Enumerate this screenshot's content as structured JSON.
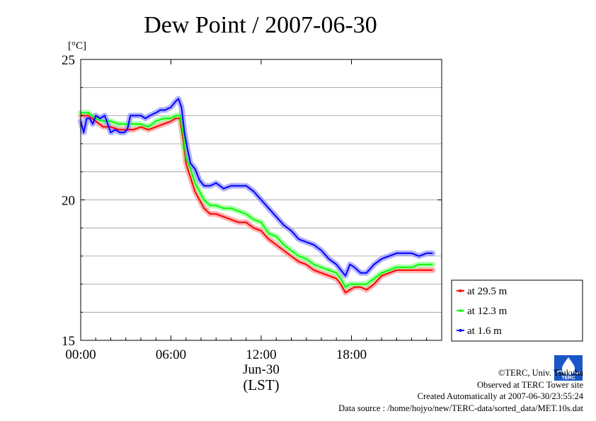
{
  "chart_data": {
    "type": "line",
    "title": "Dew Point / 2007-06-30",
    "ylabel": "[°C]",
    "xlabel_date": "Jun-30",
    "xlabel_tz": "(LST)",
    "ylim": [
      15,
      25
    ],
    "xlim": [
      0,
      24
    ],
    "y_ticks": [
      15,
      20,
      25
    ],
    "y_minor_ticks": [
      16,
      17,
      18,
      19,
      21,
      22,
      23,
      24
    ],
    "x_ticks": [
      {
        "value": 0,
        "label": "00:00"
      },
      {
        "value": 6,
        "label": "06:00"
      },
      {
        "value": 12,
        "label": "12:00"
      },
      {
        "value": 18,
        "label": "18:00"
      }
    ],
    "grid": true,
    "legend_placement": "right",
    "series": [
      {
        "name": "at 29.5 m",
        "color": "#ff0000",
        "band_color": "#ff9090",
        "x": [
          0,
          0.5,
          1,
          1.5,
          2,
          2.5,
          3,
          3.5,
          4,
          4.5,
          5,
          5.5,
          6,
          6.3,
          6.6,
          6.8,
          7,
          7.3,
          7.6,
          7.9,
          8.2,
          8.6,
          9,
          9.5,
          10,
          10.5,
          11,
          11.5,
          12,
          12.5,
          13,
          13.5,
          14,
          14.5,
          15,
          15.5,
          16,
          16.5,
          17,
          17.3,
          17.6,
          17.9,
          18.2,
          18.6,
          19,
          19.5,
          20,
          20.5,
          21,
          21.5,
          22,
          22.5,
          23,
          23.4
        ],
        "y": [
          23.0,
          23.0,
          22.8,
          22.6,
          22.6,
          22.5,
          22.5,
          22.5,
          22.6,
          22.5,
          22.6,
          22.7,
          22.8,
          22.9,
          22.9,
          22.2,
          21.3,
          20.8,
          20.3,
          20.0,
          19.7,
          19.5,
          19.5,
          19.4,
          19.3,
          19.2,
          19.2,
          19.0,
          18.9,
          18.6,
          18.4,
          18.2,
          18.0,
          17.8,
          17.7,
          17.5,
          17.4,
          17.3,
          17.2,
          17.0,
          16.7,
          16.8,
          16.9,
          16.9,
          16.8,
          17.0,
          17.3,
          17.4,
          17.5,
          17.5,
          17.5,
          17.5,
          17.5,
          17.5
        ]
      },
      {
        "name": "at 12.3 m",
        "color": "#00ff00",
        "band_color": "#90ff90",
        "x": [
          0,
          0.5,
          1,
          1.5,
          2,
          2.5,
          3,
          3.5,
          4,
          4.5,
          5,
          5.5,
          6,
          6.3,
          6.6,
          6.8,
          7,
          7.3,
          7.6,
          7.9,
          8.2,
          8.6,
          9,
          9.5,
          10,
          10.5,
          11,
          11.5,
          12,
          12.5,
          13,
          13.5,
          14,
          14.5,
          15,
          15.5,
          16,
          16.5,
          17,
          17.3,
          17.6,
          17.9,
          18.2,
          18.6,
          19,
          19.5,
          20,
          20.5,
          21,
          21.5,
          22,
          22.5,
          23,
          23.4
        ],
        "y": [
          23.1,
          23.1,
          22.9,
          22.8,
          22.8,
          22.7,
          22.7,
          22.7,
          22.7,
          22.6,
          22.8,
          22.9,
          22.9,
          23.0,
          23.0,
          22.4,
          21.5,
          21.1,
          20.6,
          20.3,
          20.0,
          19.8,
          19.8,
          19.7,
          19.7,
          19.6,
          19.5,
          19.3,
          19.2,
          18.8,
          18.7,
          18.4,
          18.2,
          18.0,
          17.9,
          17.7,
          17.6,
          17.5,
          17.4,
          17.2,
          16.9,
          17.0,
          17.0,
          17.0,
          17.0,
          17.2,
          17.4,
          17.5,
          17.6,
          17.6,
          17.6,
          17.7,
          17.7,
          17.7
        ]
      },
      {
        "name": "at 1.6 m",
        "color": "#0000ff",
        "band_color": "#9090ff",
        "x": [
          0,
          0.2,
          0.4,
          0.6,
          0.8,
          1,
          1.3,
          1.6,
          2,
          2.3,
          2.6,
          2.9,
          3.1,
          3.3,
          3.6,
          4,
          4.3,
          4.6,
          5,
          5.3,
          5.6,
          6,
          6.3,
          6.5,
          6.7,
          6.9,
          7.1,
          7.3,
          7.6,
          7.9,
          8.2,
          8.6,
          9,
          9.5,
          10,
          10.5,
          11,
          11.5,
          12,
          12.5,
          13,
          13.5,
          14,
          14.5,
          15,
          15.5,
          16,
          16.5,
          17,
          17.3,
          17.6,
          17.9,
          18.2,
          18.6,
          19,
          19.5,
          20,
          20.5,
          21,
          21.5,
          22,
          22.5,
          23,
          23.4
        ],
        "y": [
          22.8,
          22.4,
          22.9,
          22.9,
          22.7,
          23.0,
          22.9,
          23.0,
          22.4,
          22.5,
          22.4,
          22.4,
          22.5,
          23.0,
          23.0,
          23.0,
          22.9,
          23.0,
          23.1,
          23.2,
          23.2,
          23.3,
          23.5,
          23.6,
          23.3,
          22.4,
          21.8,
          21.3,
          21.1,
          20.7,
          20.5,
          20.5,
          20.6,
          20.4,
          20.5,
          20.5,
          20.5,
          20.3,
          20.0,
          19.7,
          19.4,
          19.1,
          18.9,
          18.6,
          18.5,
          18.4,
          18.2,
          17.9,
          17.7,
          17.5,
          17.3,
          17.7,
          17.6,
          17.4,
          17.4,
          17.7,
          17.9,
          18.0,
          18.1,
          18.1,
          18.1,
          18.0,
          18.1,
          18.1
        ]
      }
    ]
  },
  "footer": {
    "copyright": "©TERC, Univ. Tsukuba",
    "site": "Observed at TERC Tower site",
    "created": "Created Automatically at 2007-06-30/23:55:24",
    "source": "Data source : /home/hojyo/new/TERC-data/sorted_data/MET.10s.dat"
  },
  "logo": {
    "icon": "terc-logo-icon",
    "text": "TERC",
    "color": "#1a56c8"
  }
}
